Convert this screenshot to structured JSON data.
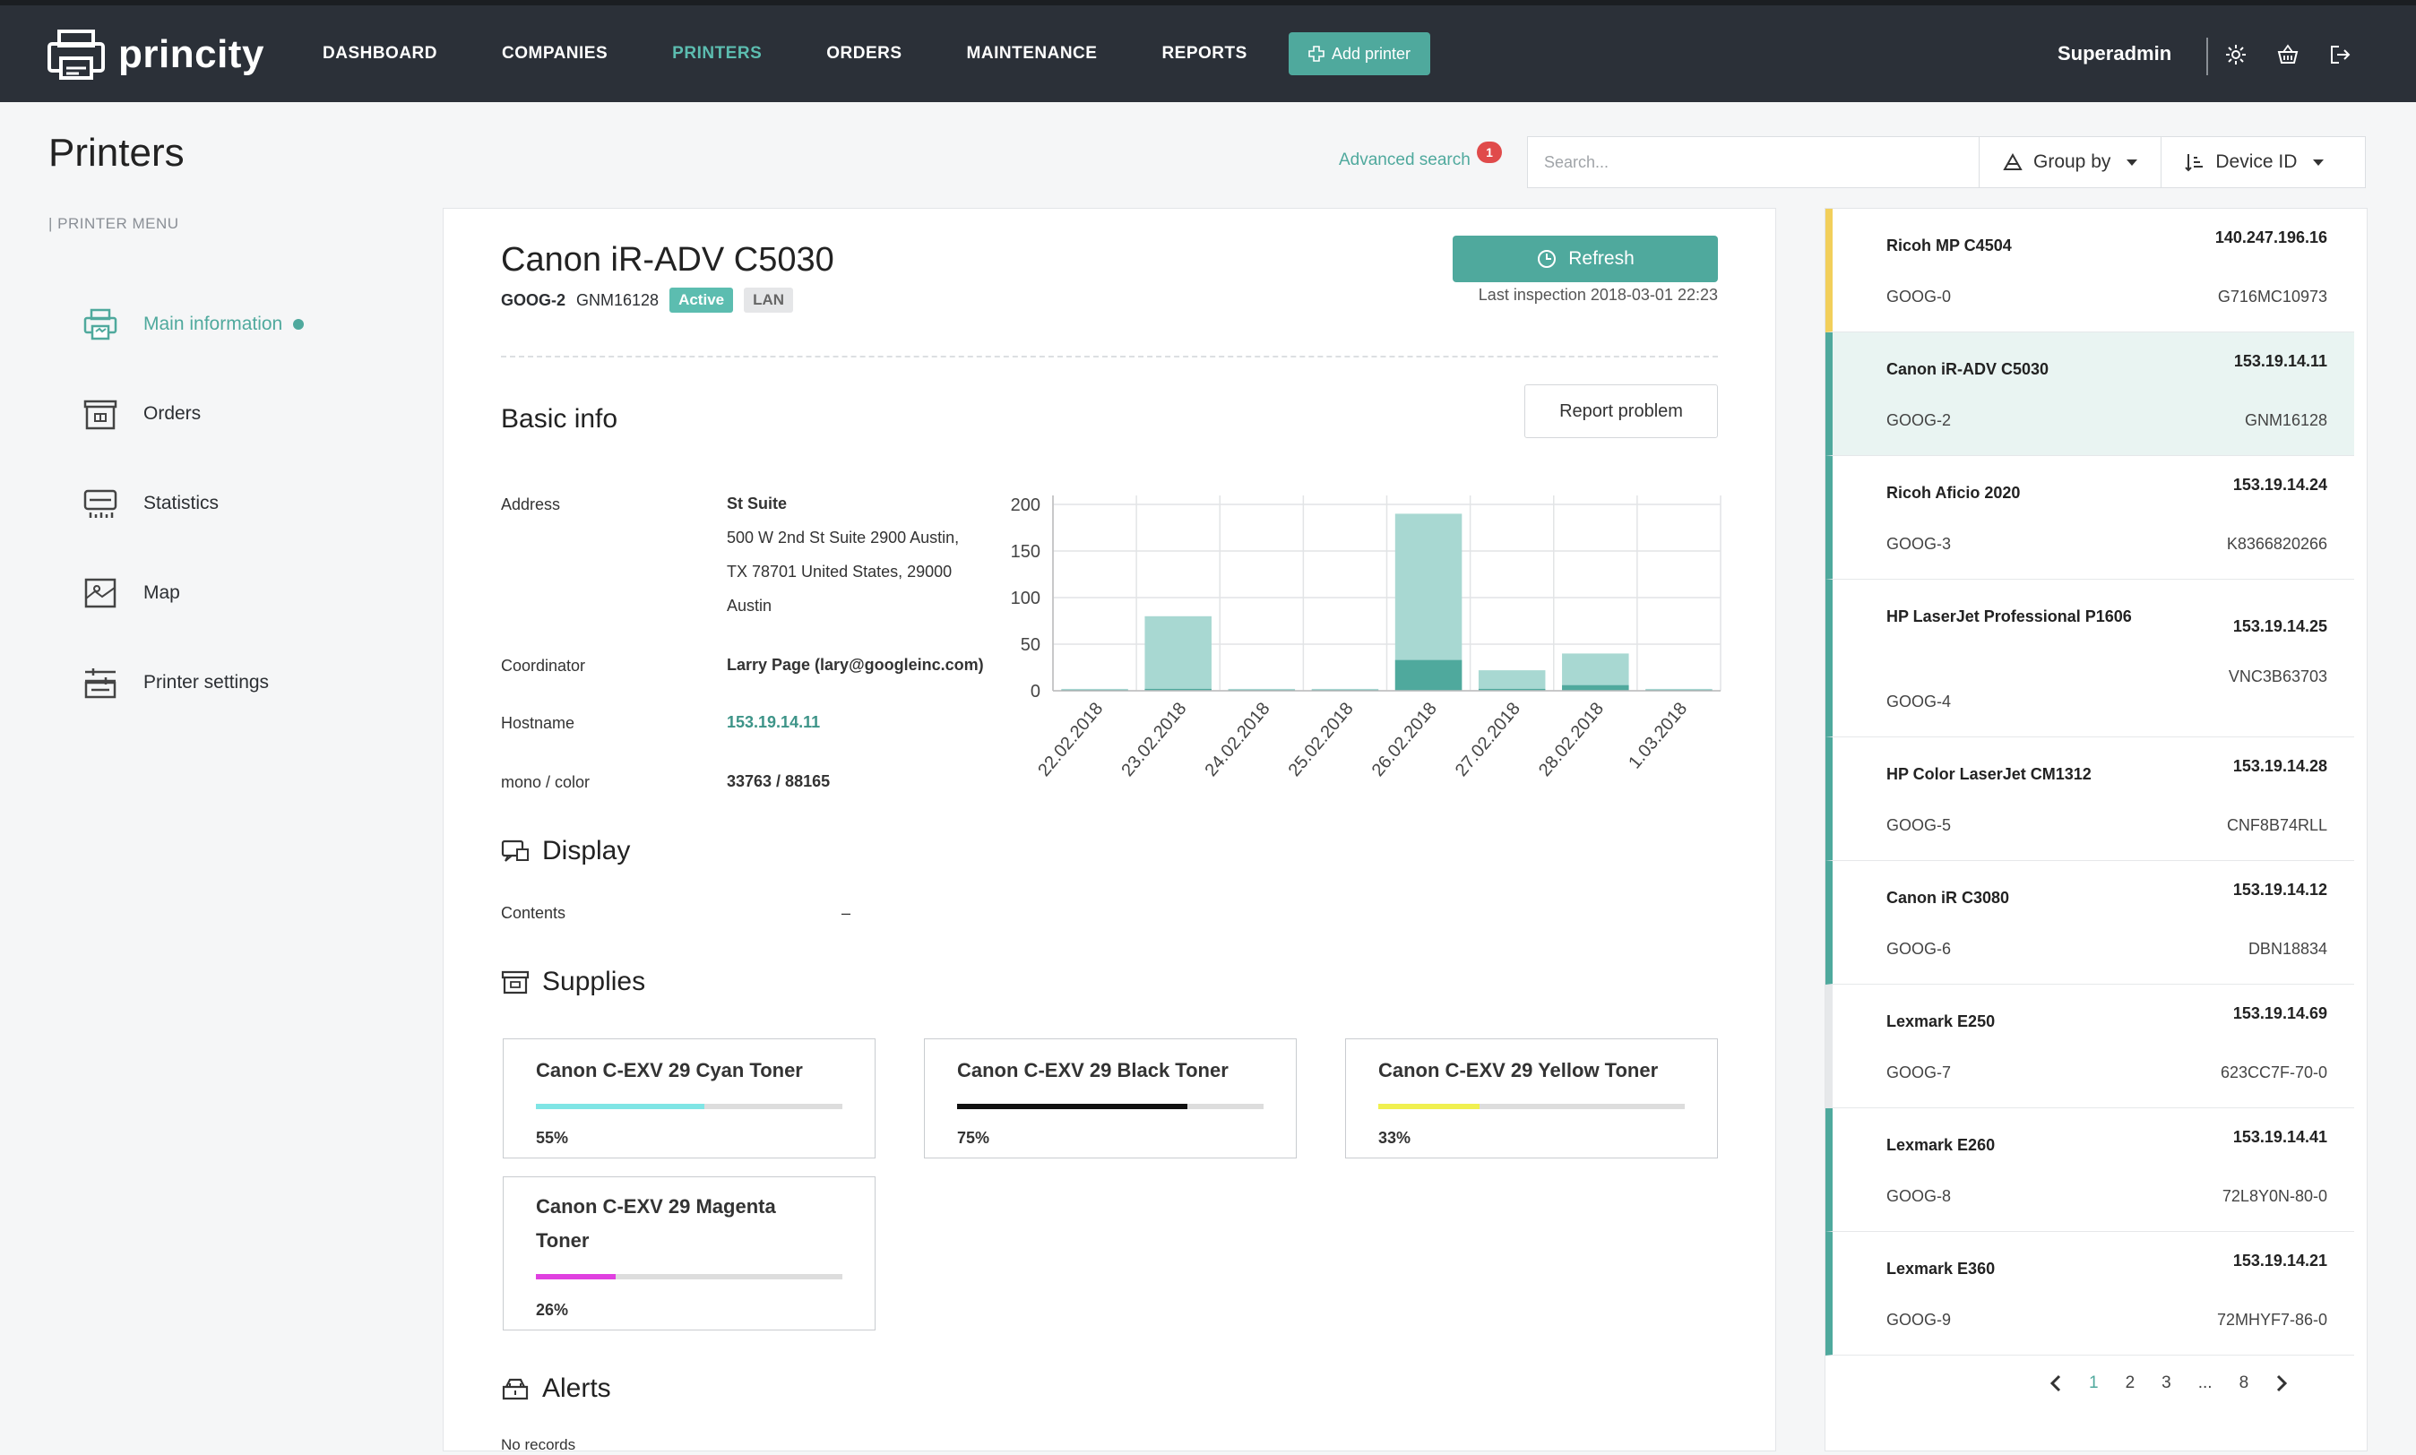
{
  "app": {
    "name": "princity"
  },
  "nav": [
    "DASHBOARD",
    "COMPANIES",
    "PRINTERS",
    "ORDERS",
    "MAINTENANCE",
    "REPORTS"
  ],
  "add_printer": "Add printer",
  "user": "Superadmin",
  "page_title": "Printers",
  "advanced_search": {
    "label": "Advanced search",
    "count": "1"
  },
  "search": {
    "placeholder": "Search..."
  },
  "group_by": "Group by",
  "sort_by": "Device ID",
  "menu": {
    "label": "PRINTER MENU",
    "items": [
      "Main information",
      "Orders",
      "Statistics",
      "Map",
      "Printer settings"
    ]
  },
  "printer": {
    "name": "Canon iR-ADV C5030",
    "code": "GOOG-2",
    "serial": "GNM16128",
    "status": "Active",
    "connection": "LAN",
    "refresh": "Refresh",
    "last_inspection": "Last inspection 2018-03-01 22:23"
  },
  "basic_info": {
    "title": "Basic info",
    "report": "Report problem",
    "address_label": "Address",
    "address_name": "St Suite",
    "address_lines": [
      "500 W 2nd St Suite 2900 Austin,",
      "TX 78701 United States, 29000",
      "Austin"
    ],
    "coordinator_label": "Coordinator",
    "coordinator": "Larry Page (lary@googleinc.com)",
    "hostname_label": "Hostname",
    "hostname": "153.19.14.11",
    "counter_label": "mono / color",
    "counter": "33763 / 88165"
  },
  "display": {
    "title": "Display",
    "contents_label": "Contents",
    "contents_value": "–"
  },
  "supplies": {
    "title": "Supplies",
    "items": [
      {
        "name": "Canon C-EXV 29 Cyan Toner",
        "level": 55,
        "pct": "55%",
        "color": "#7fe5e5"
      },
      {
        "name": "Canon C-EXV 29 Black Toner",
        "level": 75,
        "pct": "75%",
        "color": "#111111"
      },
      {
        "name": "Canon C-EXV 29 Yellow Toner",
        "level": 33,
        "pct": "33%",
        "color": "#f0f050"
      },
      {
        "name": "Canon C-EXV 29 Magenta Toner",
        "level": 26,
        "pct": "26%",
        "color": "#e040e0"
      }
    ]
  },
  "alerts": {
    "title": "Alerts",
    "empty": "No records"
  },
  "chart_data": {
    "type": "bar",
    "categories": [
      "22.02.2018",
      "23.02.2018",
      "24.02.2018",
      "25.02.2018",
      "26.02.2018",
      "27.02.2018",
      "28.02.2018",
      "1.03.2018"
    ],
    "series": [
      {
        "values": [
          2,
          80,
          2,
          2,
          190,
          22,
          40,
          2
        ],
        "color": "#a8d8d2"
      },
      {
        "values": [
          1,
          2,
          1,
          1,
          33,
          2,
          6,
          1
        ],
        "color": "#4fa99d"
      }
    ],
    "stacked": false,
    "ylim": [
      0,
      200
    ],
    "yticks": [
      0,
      50,
      100,
      150,
      200
    ],
    "grid": true
  },
  "list": {
    "items": [
      {
        "name": "Ricoh MP C4504",
        "ip": "140.247.196.16",
        "code": "GOOG-0",
        "serial": "G716MC10973",
        "color": "#f2cf5b"
      },
      {
        "name": "Canon iR-ADV C5030",
        "ip": "153.19.14.11",
        "code": "GOOG-2",
        "serial": "GNM16128",
        "color": "#4fa99d"
      },
      {
        "name": "Ricoh Aficio 2020",
        "ip": "153.19.14.24",
        "code": "GOOG-3",
        "serial": "K8366820266",
        "color": "#4fa99d"
      },
      {
        "name": "HP LaserJet Professional P1606",
        "ip": "153.19.14.25",
        "code": "GOOG-4",
        "serial": "VNC3B63703",
        "color": "#4fa99d"
      },
      {
        "name": "HP Color LaserJet CM1312",
        "ip": "153.19.14.28",
        "code": "GOOG-5",
        "serial": "CNF8B74RLL",
        "color": "#4fa99d"
      },
      {
        "name": "Canon iR C3080",
        "ip": "153.19.14.12",
        "code": "GOOG-6",
        "serial": "DBN18834",
        "color": "#4fa99d"
      },
      {
        "name": "Lexmark E250",
        "ip": "153.19.14.69",
        "code": "GOOG-7",
        "serial": "623CC7F-70-0",
        "color": "#e6e8ea"
      },
      {
        "name": "Lexmark E260",
        "ip": "153.19.14.41",
        "code": "GOOG-8",
        "serial": "72L8Y0N-80-0",
        "color": "#4fa99d"
      },
      {
        "name": "Lexmark E360",
        "ip": "153.19.14.21",
        "code": "GOOG-9",
        "serial": "72MHYF7-86-0",
        "color": "#4fa99d"
      }
    ],
    "selected": 1,
    "pages": [
      "1",
      "2",
      "3",
      "...",
      "8"
    ],
    "current_page": "1"
  }
}
